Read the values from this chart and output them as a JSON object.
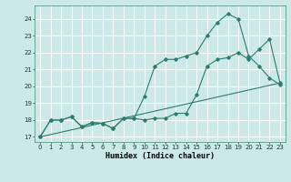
{
  "xlabel": "Humidex (Indice chaleur)",
  "background_color": "#cce8e8",
  "grid_color": "#ffffff",
  "line_color": "#2d7d6e",
  "xlim": [
    -0.5,
    23.5
  ],
  "ylim": [
    16.7,
    24.8
  ],
  "yticks": [
    17,
    18,
    19,
    20,
    21,
    22,
    23,
    24
  ],
  "xticks": [
    0,
    1,
    2,
    3,
    4,
    5,
    6,
    7,
    8,
    9,
    10,
    11,
    12,
    13,
    14,
    15,
    16,
    17,
    18,
    19,
    20,
    21,
    22,
    23
  ],
  "line1_x": [
    0,
    1,
    2,
    3,
    4,
    5,
    6,
    7,
    8,
    9,
    10,
    11,
    12,
    13,
    14,
    15,
    16,
    17,
    18,
    19,
    20,
    21,
    22,
    23
  ],
  "line1_y": [
    17.0,
    18.0,
    18.0,
    18.2,
    17.6,
    17.85,
    17.8,
    17.5,
    18.1,
    18.1,
    19.4,
    21.2,
    21.6,
    21.6,
    21.8,
    22.0,
    23.0,
    23.8,
    24.3,
    24.0,
    21.8,
    21.2,
    20.5,
    20.1
  ],
  "line2_x": [
    0,
    1,
    2,
    3,
    4,
    5,
    6,
    7,
    8,
    9,
    10,
    11,
    12,
    13,
    14,
    15,
    16,
    17,
    18,
    19,
    20,
    21,
    22,
    23
  ],
  "line2_y": [
    17.0,
    18.0,
    18.0,
    18.2,
    17.6,
    17.85,
    17.8,
    17.5,
    18.1,
    18.1,
    18.0,
    18.1,
    18.1,
    18.4,
    18.4,
    19.5,
    21.2,
    21.6,
    21.7,
    22.0,
    21.6,
    22.2,
    22.8,
    20.2
  ],
  "line3_x": [
    0,
    23
  ],
  "line3_y": [
    17.0,
    20.2
  ]
}
